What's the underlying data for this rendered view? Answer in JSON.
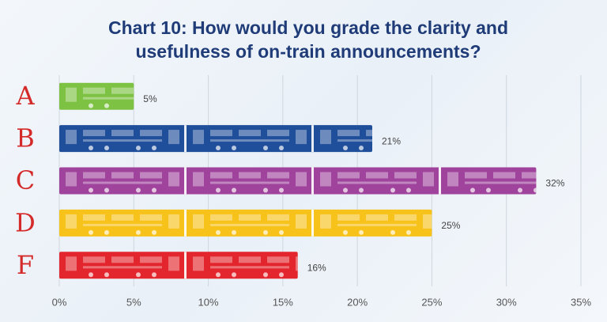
{
  "chart_data": {
    "type": "bar",
    "orientation": "horizontal",
    "title": "Chart 10: How would you grade the clarity and usefulness of on-train announcements?",
    "categories": [
      "A",
      "B",
      "C",
      "D",
      "F"
    ],
    "values": [
      5,
      21,
      32,
      25,
      16
    ],
    "value_labels": [
      "5%",
      "21%",
      "32%",
      "25%",
      "16%"
    ],
    "colors": [
      "#7dc242",
      "#1f4e9a",
      "#a0439c",
      "#f7c21a",
      "#e3262d"
    ],
    "xlim": [
      0,
      35
    ],
    "xticks": [
      {
        "value": 0,
        "label": "0%"
      },
      {
        "value": 5,
        "label": "5%"
      },
      {
        "value": 10,
        "label": "10%"
      },
      {
        "value": 15,
        "label": "15%"
      },
      {
        "value": 20,
        "label": "20%"
      },
      {
        "value": 25,
        "label": "25%"
      },
      {
        "value": 30,
        "label": "30%"
      },
      {
        "value": 35,
        "label": "35%"
      }
    ],
    "grid": true
  }
}
